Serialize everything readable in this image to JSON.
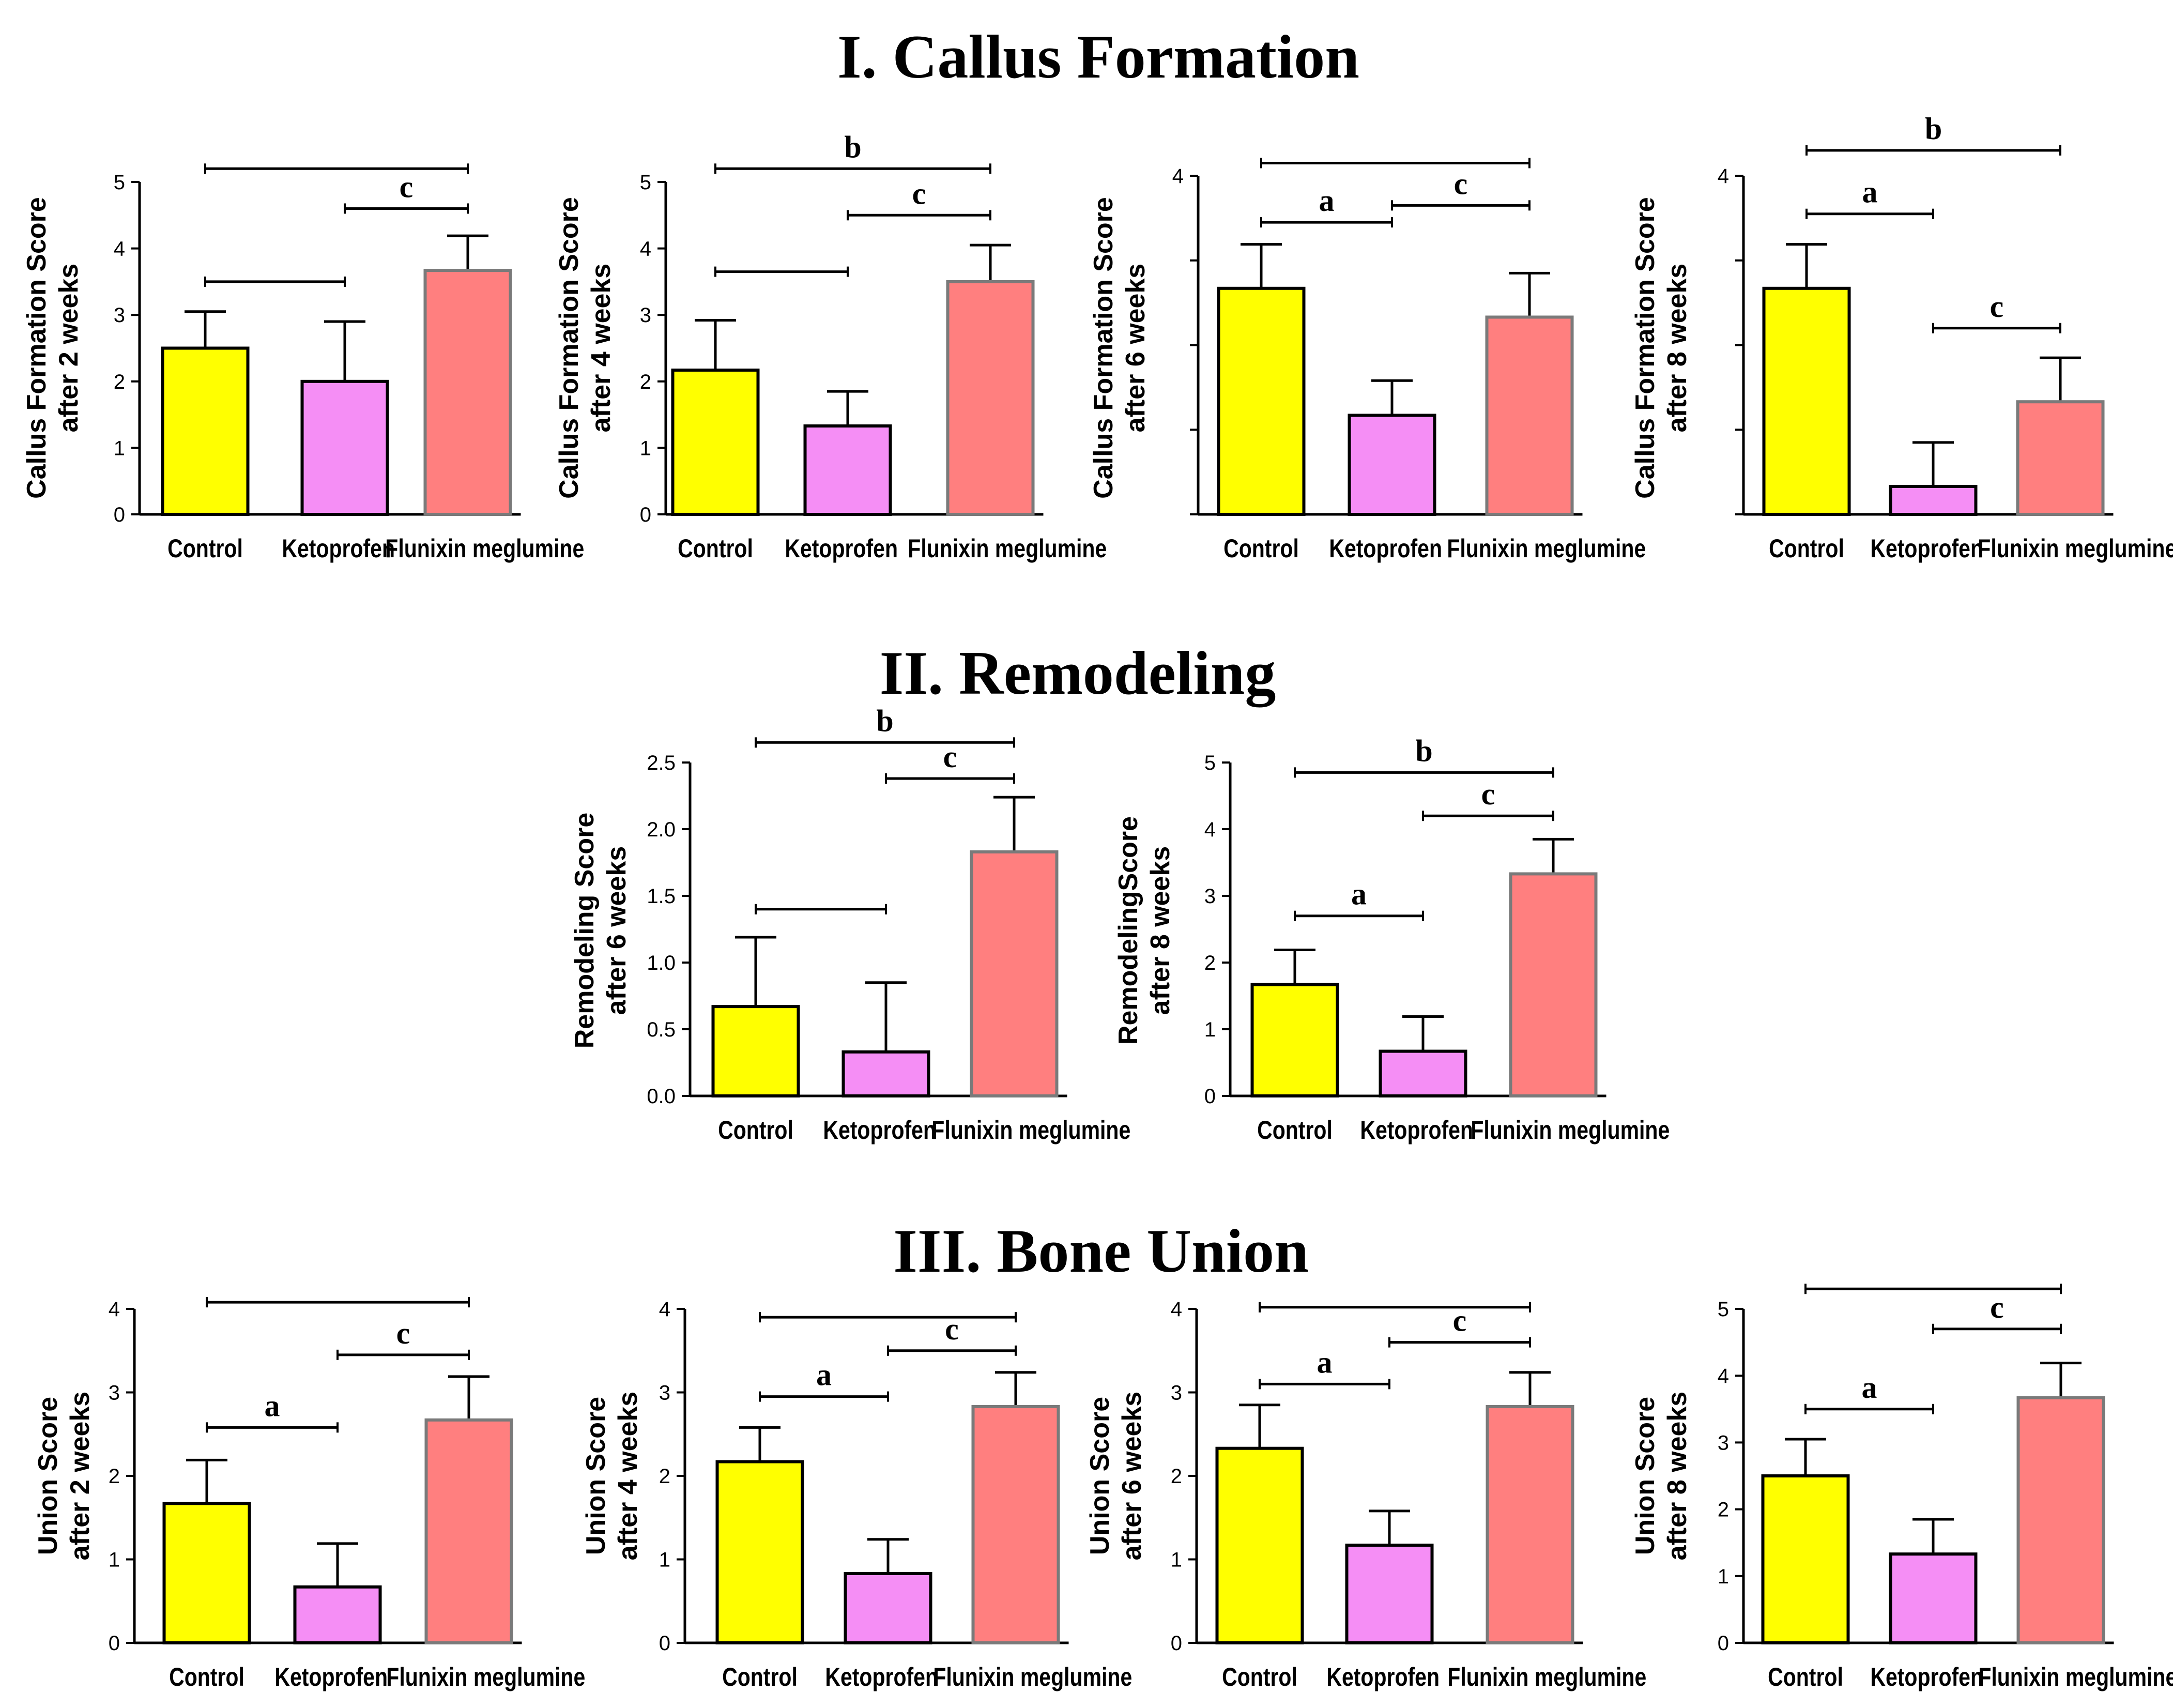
{
  "section_titles": [
    "I. Callus Formation",
    "II. Remodeling",
    "III. Bone Union"
  ],
  "colors": {
    "Control": "#ffff00",
    "Ketoprofen": "#f58ef5",
    "Flunixin meglumine": "#ff7f7f",
    "axis": "#000000"
  },
  "chart_data": [
    {
      "section": "I. Callus Formation",
      "type": "bar",
      "categories": [
        "Control",
        "Ketoprofen",
        "Flunixin meglumine"
      ],
      "values": [
        2.5,
        2.0,
        3.67
      ],
      "errors": [
        0.55,
        0.9,
        0.52
      ],
      "ylabel": [
        "Callus Formation Score",
        "after 2 weeks"
      ],
      "ylim": [
        0,
        5
      ],
      "yticks": [
        "0",
        "1",
        "2",
        "3",
        "4",
        "5"
      ],
      "significance": [
        {
          "from": 0,
          "to": 2,
          "label": "",
          "y": 5.2
        },
        {
          "from": 1,
          "to": 2,
          "label": "c",
          "y": 4.6
        },
        {
          "from": 0,
          "to": 1,
          "label": "",
          "y": 3.5
        }
      ]
    },
    {
      "section": "I. Callus Formation",
      "type": "bar",
      "categories": [
        "Control",
        "Ketoprofen",
        "Flunixin meglumine"
      ],
      "values": [
        2.17,
        1.33,
        3.5
      ],
      "errors": [
        0.75,
        0.52,
        0.55
      ],
      "ylabel": [
        "Callus Formation Score",
        "after 4 weeks"
      ],
      "ylim": [
        0,
        5
      ],
      "yticks": [
        "0",
        "1",
        "2",
        "3",
        "4",
        "5"
      ],
      "significance": [
        {
          "from": 0,
          "to": 2,
          "label": "b",
          "y": 5.2
        },
        {
          "from": 1,
          "to": 2,
          "label": "c",
          "y": 4.5
        },
        {
          "from": 0,
          "to": 1,
          "label": "",
          "y": 3.65
        }
      ]
    },
    {
      "section": "I. Callus Formation",
      "type": "bar",
      "categories": [
        "Control",
        "Ketoprofen",
        "Flunixin meglumine"
      ],
      "values": [
        2.67,
        1.17,
        2.33
      ],
      "errors": [
        0.52,
        0.41,
        0.52
      ],
      "ylabel": [
        "Callus Formation Score",
        "after 6 weeks"
      ],
      "ylim": [
        0,
        4
      ],
      "yticks": [
        "",
        "",
        "",
        "",
        "4"
      ],
      "significance": [
        {
          "from": 0,
          "to": 2,
          "label": "",
          "y": 4.15
        },
        {
          "from": 1,
          "to": 2,
          "label": "c",
          "y": 3.65
        },
        {
          "from": 0,
          "to": 1,
          "label": "a",
          "y": 3.45
        }
      ]
    },
    {
      "section": "I. Callus Formation",
      "type": "bar",
      "categories": [
        "Control",
        "Ketoprofen",
        "Flunixin meglumine"
      ],
      "values": [
        2.67,
        0.33,
        1.33
      ],
      "errors": [
        0.52,
        0.52,
        0.52
      ],
      "ylabel": [
        "Callus Formation Score",
        "after 8 weeks"
      ],
      "ylim": [
        0,
        4
      ],
      "yticks": [
        "",
        "",
        "",
        "",
        "4"
      ],
      "significance": [
        {
          "from": 0,
          "to": 2,
          "label": "b",
          "y": 4.3
        },
        {
          "from": 0,
          "to": 1,
          "label": "a",
          "y": 3.55
        },
        {
          "from": 1,
          "to": 2,
          "label": "c",
          "y": 2.2
        }
      ]
    },
    {
      "section": "II. Remodeling",
      "type": "bar",
      "categories": [
        "Control",
        "Ketoprofen",
        "Flunixin meglumine"
      ],
      "values": [
        0.67,
        0.33,
        1.83
      ],
      "errors": [
        0.52,
        0.52,
        0.41
      ],
      "ylabel": [
        "Remodeling Score",
        "after 6 weeks"
      ],
      "ylim": [
        0,
        2.5
      ],
      "yticks": [
        "0.0",
        "0.5",
        "1.0",
        "1.5",
        "2.0",
        "2.5"
      ],
      "significance": [
        {
          "from": 0,
          "to": 2,
          "label": "b",
          "y": 2.65
        },
        {
          "from": 1,
          "to": 2,
          "label": "c",
          "y": 2.38
        },
        {
          "from": 0,
          "to": 1,
          "label": "",
          "y": 1.4
        }
      ]
    },
    {
      "section": "II. Remodeling",
      "type": "bar",
      "categories": [
        "Control",
        "Ketoprofen",
        "Flunixin meglumine"
      ],
      "values": [
        1.67,
        0.67,
        3.33
      ],
      "errors": [
        0.52,
        0.52,
        0.52
      ],
      "ylabel": [
        "RemodelingScore",
        "after 8 weeks"
      ],
      "ylim": [
        0,
        5
      ],
      "yticks": [
        "0",
        "1",
        "2",
        "3",
        "4",
        "5"
      ],
      "significance": [
        {
          "from": 0,
          "to": 2,
          "label": "b",
          "y": 4.85
        },
        {
          "from": 1,
          "to": 2,
          "label": "c",
          "y": 4.2
        },
        {
          "from": 0,
          "to": 1,
          "label": "a",
          "y": 2.7
        }
      ]
    },
    {
      "section": "III. Bone Union",
      "type": "bar",
      "categories": [
        "Control",
        "Ketoprofen",
        "Flunixin meglumine"
      ],
      "values": [
        1.67,
        0.67,
        2.67
      ],
      "errors": [
        0.52,
        0.52,
        0.52
      ],
      "ylabel": [
        "Union Score",
        "after 2 weeks"
      ],
      "ylim": [
        0,
        4
      ],
      "yticks": [
        "0",
        "1",
        "2",
        "3",
        "4"
      ],
      "significance": [
        {
          "from": 0,
          "to": 2,
          "label": "",
          "y": 4.08
        },
        {
          "from": 1,
          "to": 2,
          "label": "c",
          "y": 3.45
        },
        {
          "from": 0,
          "to": 1,
          "label": "a",
          "y": 2.58
        }
      ]
    },
    {
      "section": "III. Bone Union",
      "type": "bar",
      "categories": [
        "Control",
        "Ketoprofen",
        "Flunixin meglumine"
      ],
      "values": [
        2.17,
        0.83,
        2.83
      ],
      "errors": [
        0.41,
        0.41,
        0.41
      ],
      "ylabel": [
        "Union Score",
        "after 4 weeks"
      ],
      "ylim": [
        0,
        4
      ],
      "yticks": [
        "0",
        "1",
        "2",
        "3",
        "4"
      ],
      "significance": [
        {
          "from": 0,
          "to": 2,
          "label": "",
          "y": 3.9
        },
        {
          "from": 1,
          "to": 2,
          "label": "c",
          "y": 3.5
        },
        {
          "from": 0,
          "to": 1,
          "label": "a",
          "y": 2.95
        }
      ]
    },
    {
      "section": "III. Bone Union",
      "type": "bar",
      "categories": [
        "Control",
        "Ketoprofen",
        "Flunixin meglumine"
      ],
      "values": [
        2.33,
        1.17,
        2.83
      ],
      "errors": [
        0.52,
        0.41,
        0.41
      ],
      "ylabel": [
        "Union Score",
        "after 6 weeks"
      ],
      "ylim": [
        0,
        4
      ],
      "yticks": [
        "0",
        "1",
        "2",
        "3",
        "4"
      ],
      "significance": [
        {
          "from": 0,
          "to": 2,
          "label": "",
          "y": 4.02
        },
        {
          "from": 1,
          "to": 2,
          "label": "c",
          "y": 3.6
        },
        {
          "from": 0,
          "to": 1,
          "label": "a",
          "y": 3.1
        }
      ]
    },
    {
      "section": "III. Bone Union",
      "type": "bar",
      "categories": [
        "Control",
        "Ketoprofen",
        "Flunixin meglumine"
      ],
      "values": [
        2.5,
        1.33,
        3.67
      ],
      "errors": [
        0.55,
        0.52,
        0.52
      ],
      "ylabel": [
        "Union Score",
        "after 8 weeks"
      ],
      "ylim": [
        0,
        5
      ],
      "yticks": [
        "0",
        "1",
        "2",
        "3",
        "4",
        "5"
      ],
      "significance": [
        {
          "from": 0,
          "to": 2,
          "label": "",
          "y": 5.3
        },
        {
          "from": 1,
          "to": 2,
          "label": "c",
          "y": 4.7
        },
        {
          "from": 0,
          "to": 1,
          "label": "a",
          "y": 3.5
        }
      ]
    }
  ]
}
